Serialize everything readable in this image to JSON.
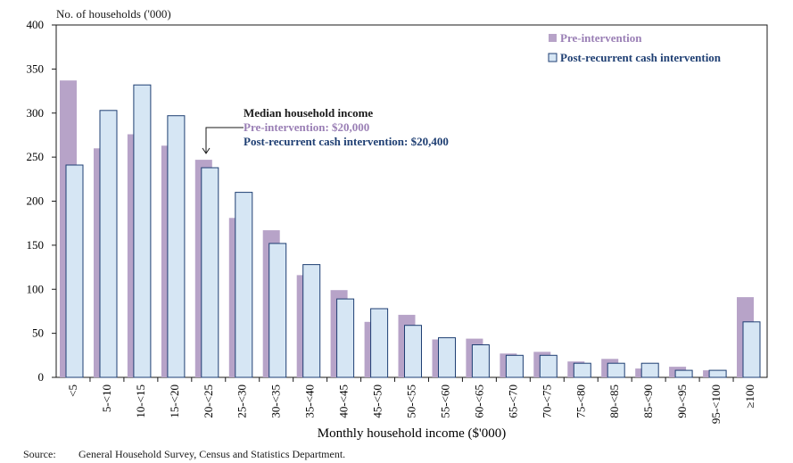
{
  "chart_data": {
    "type": "bar",
    "ylabel": "No. of households ('000)",
    "xlabel": "Monthly household income ($'000)",
    "ylim": [
      0,
      400
    ],
    "yticks": [
      0,
      50,
      100,
      150,
      200,
      250,
      300,
      350,
      400
    ],
    "categories": [
      "<5",
      "5-<10",
      "10-<15",
      "15-<20",
      "20-<25",
      "25-<30",
      "30-<35",
      "35-<40",
      "40-<45",
      "45-<50",
      "50-<55",
      "55-<60",
      "60-<65",
      "65-<70",
      "70-<75",
      "75-<80",
      "80-<85",
      "85-<90",
      "90-<95",
      "95-<100",
      "≥100"
    ],
    "series": [
      {
        "name": "Pre-intervention",
        "color": "#b7a3c8",
        "values": [
          337,
          260,
          276,
          263,
          247,
          181,
          167,
          116,
          99,
          63,
          71,
          43,
          44,
          27,
          29,
          18,
          21,
          10,
          12,
          8,
          91
        ]
      },
      {
        "name": "Post-recurrent cash intervention",
        "color": "#d6e6f4",
        "stroke": "#1f3f73",
        "values": [
          241,
          303,
          332,
          297,
          238,
          210,
          152,
          128,
          89,
          78,
          59,
          45,
          37,
          25,
          25,
          16,
          16,
          16,
          8,
          8,
          63
        ]
      }
    ],
    "legend_position": "top-right",
    "annotation": {
      "title": "Median household income",
      "pre": "Pre-intervention: $20,000",
      "post": "Post-recurrent cash intervention: $20,400",
      "pre_color": "#9a7fb5",
      "post_color": "#1f3f73"
    }
  },
  "source": {
    "label": "Source:",
    "text": "General Household Survey, Census and Statistics Department."
  }
}
